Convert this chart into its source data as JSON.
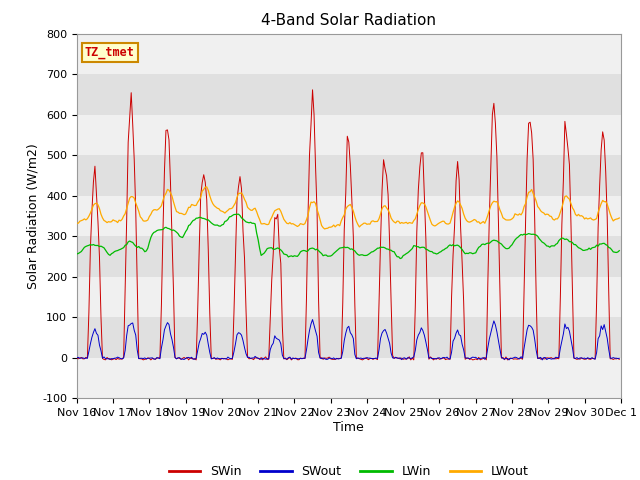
{
  "title": "4-Band Solar Radiation",
  "xlabel": "Time",
  "ylabel": "Solar Radiation (W/m2)",
  "ylim": [
    -100,
    800
  ],
  "legend_label": "TZ_tmet",
  "series_labels": [
    "SWin",
    "SWout",
    "LWin",
    "LWout"
  ],
  "series_colors": [
    "#cc0000",
    "#0000cc",
    "#00bb00",
    "#ffaa00"
  ],
  "background_color": "#e0e0e0",
  "band_color": "#f0f0f0",
  "title_fontsize": 11,
  "axis_fontsize": 9,
  "tick_fontsize": 8
}
